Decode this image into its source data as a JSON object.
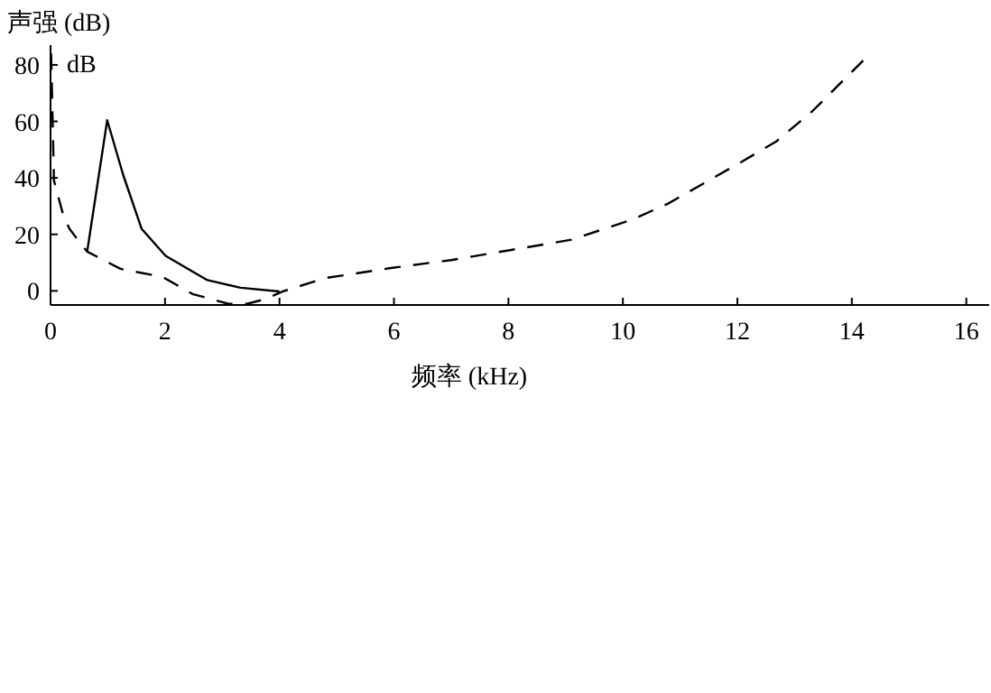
{
  "chart_data": {
    "type": "line",
    "ylabel": "声强 (dB)",
    "xlabel": "频率 (kHz)",
    "annotations": [
      "dB"
    ],
    "xlim": [
      0,
      16.4
    ],
    "ylim": [
      -5,
      87
    ],
    "xticks": [
      0,
      2,
      4,
      6,
      8,
      10,
      12,
      14,
      16
    ],
    "yticks": [
      0,
      20,
      40,
      60,
      80
    ],
    "grid": false,
    "marker": "none",
    "series": [
      {
        "color": "#000000",
        "line_style": "solid",
        "x": [
          0.64,
          0.99,
          1.27,
          1.59,
          2.01,
          2.74,
          3.32,
          4.0
        ],
        "values": [
          13.9,
          60.4,
          41,
          22,
          12.4,
          3.8,
          1.1,
          -0.2
        ]
      },
      {
        "color": "#000000",
        "line_style": "dashed",
        "x": [
          0.01,
          0.06,
          0.22,
          0.33,
          0.48,
          0.64,
          1.22,
          1.96,
          2.48,
          3.11,
          3.43,
          3.74,
          4.06,
          4.79,
          5.95,
          7.0,
          8.05,
          9.1,
          10.16,
          10.79,
          12.05,
          12.68,
          13.31,
          14.26
        ],
        "values": [
          84,
          39,
          27,
          22,
          18,
          13.9,
          7.8,
          4.9,
          -1.1,
          -4.6,
          -4.6,
          -3,
          -0.2,
          4.5,
          8.1,
          10.9,
          14.5,
          18.1,
          25.2,
          30.9,
          45.4,
          52.9,
          63.6,
          82.8
        ]
      }
    ]
  }
}
